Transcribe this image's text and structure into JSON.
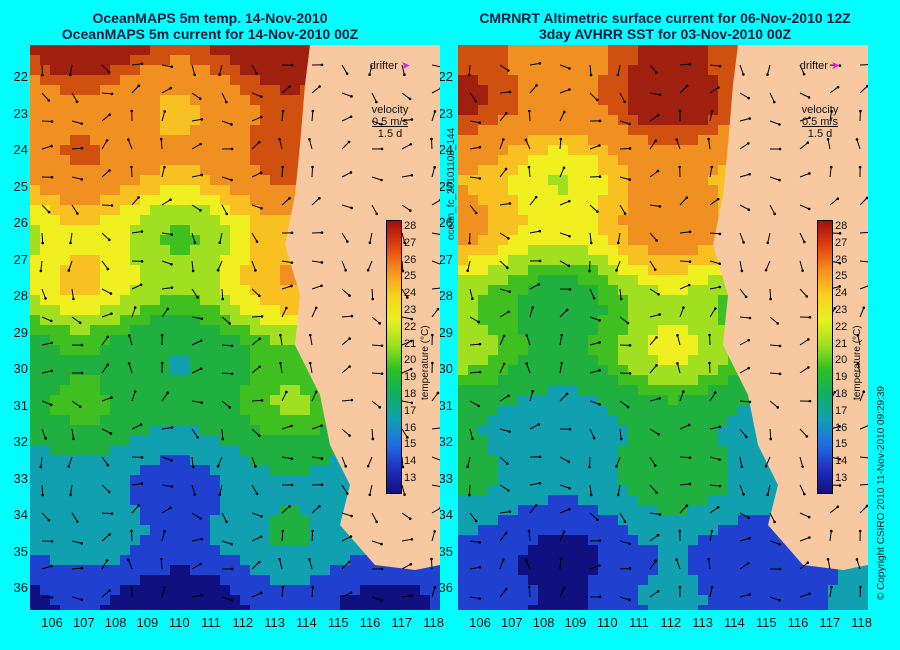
{
  "left_panel": {
    "title_line1": "OceanMAPS 5m temp. 14-Nov-2010",
    "title_line2": "OceanMAPS 5m current for 14-Nov-2010 00Z"
  },
  "right_panel": {
    "title_line1": "CMRNRT Altimetric surface current for 06-Nov-2010 12Z",
    "title_line2": "3day AVHRR SST for 03-Nov-2010 00Z"
  },
  "legend": {
    "drifter": "drifter",
    "velocity": "velocity",
    "speed": "0.5 m/s",
    "duration": "1.5 d"
  },
  "colorbar": {
    "label": "temperature (°C)",
    "ticks": [
      "28",
      "27",
      "26",
      "25",
      "24",
      "23",
      "22",
      "21",
      "20",
      "19",
      "18",
      "17",
      "16",
      "15",
      "14",
      "13"
    ]
  },
  "lat_ticks": [
    "22",
    "23",
    "24",
    "25",
    "26",
    "27",
    "28",
    "29",
    "30",
    "31",
    "32",
    "33",
    "34",
    "35",
    "36"
  ],
  "lon_ticks": [
    "106",
    "107",
    "108",
    "109",
    "110",
    "111",
    "112",
    "113",
    "114",
    "115",
    "116",
    "117",
    "118"
  ],
  "vertical_text": {
    "file_id": "ocean_fc_20101108_144",
    "copyright": "© Copyright CSIRO 2010   11-Nov-2010 09:29:39"
  }
}
